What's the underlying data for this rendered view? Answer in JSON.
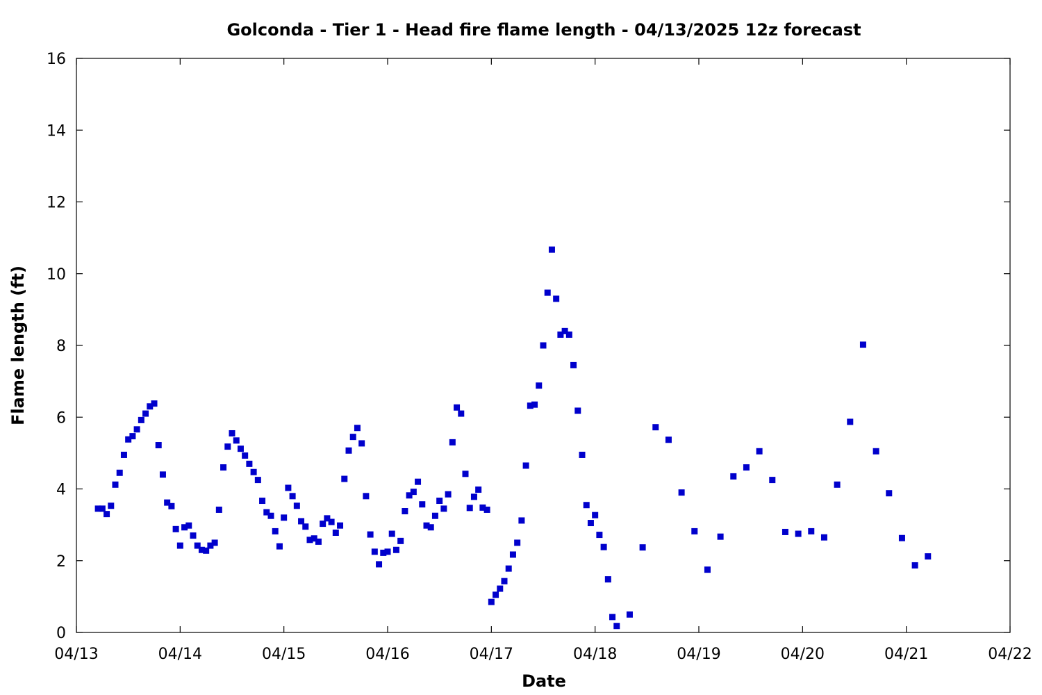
{
  "chart_data": {
    "type": "scatter",
    "title": "Golconda - Tier 1 - Head fire flame length - 04/13/2025 12z forecast",
    "xlabel": "Date",
    "ylabel": "Flame length (ft)",
    "xlim": [
      "04/13",
      "04/22"
    ],
    "ylim": [
      0,
      16
    ],
    "x_ticks": [
      "04/13",
      "04/14",
      "04/15",
      "04/16",
      "04/17",
      "04/18",
      "04/19",
      "04/20",
      "04/21",
      "04/22"
    ],
    "y_ticks": [
      0,
      2,
      4,
      6,
      8,
      10,
      12,
      14,
      16
    ],
    "grid": false,
    "marker": "square",
    "color": "#0000cc",
    "series": [
      {
        "x": [
          "2025-04-13 05:00",
          "2025-04-13 06:00",
          "2025-04-13 07:00",
          "2025-04-13 08:00",
          "2025-04-13 09:00",
          "2025-04-13 10:00",
          "2025-04-13 11:00",
          "2025-04-13 12:00",
          "2025-04-13 13:00",
          "2025-04-13 14:00",
          "2025-04-13 15:00",
          "2025-04-13 16:00",
          "2025-04-13 17:00",
          "2025-04-13 18:00",
          "2025-04-13 19:00",
          "2025-04-13 20:00",
          "2025-04-13 21:00",
          "2025-04-13 22:00",
          "2025-04-13 23:00",
          "2025-04-14 00:00",
          "2025-04-14 01:00",
          "2025-04-14 02:00",
          "2025-04-14 03:00",
          "2025-04-14 04:00",
          "2025-04-14 05:00",
          "2025-04-14 06:00",
          "2025-04-14 07:00",
          "2025-04-14 08:00",
          "2025-04-14 09:00",
          "2025-04-14 10:00",
          "2025-04-14 11:00",
          "2025-04-14 12:00",
          "2025-04-14 13:00",
          "2025-04-14 14:00",
          "2025-04-14 15:00",
          "2025-04-14 16:00",
          "2025-04-14 17:00",
          "2025-04-14 18:00",
          "2025-04-14 19:00",
          "2025-04-14 20:00",
          "2025-04-14 21:00",
          "2025-04-14 22:00",
          "2025-04-14 23:00",
          "2025-04-15 00:00",
          "2025-04-15 01:00",
          "2025-04-15 02:00",
          "2025-04-15 03:00",
          "2025-04-15 04:00",
          "2025-04-15 05:00",
          "2025-04-15 06:00",
          "2025-04-15 07:00",
          "2025-04-15 08:00",
          "2025-04-15 09:00",
          "2025-04-15 10:00",
          "2025-04-15 11:00",
          "2025-04-15 12:00",
          "2025-04-15 13:00",
          "2025-04-15 14:00",
          "2025-04-15 15:00",
          "2025-04-15 16:00",
          "2025-04-15 17:00",
          "2025-04-15 18:00",
          "2025-04-15 19:00",
          "2025-04-15 20:00",
          "2025-04-15 21:00",
          "2025-04-15 22:00",
          "2025-04-15 23:00",
          "2025-04-16 00:00",
          "2025-04-16 01:00",
          "2025-04-16 02:00",
          "2025-04-16 03:00",
          "2025-04-16 04:00",
          "2025-04-16 05:00",
          "2025-04-16 06:00",
          "2025-04-16 07:00",
          "2025-04-16 08:00",
          "2025-04-16 09:00",
          "2025-04-16 10:00",
          "2025-04-16 11:00",
          "2025-04-16 12:00",
          "2025-04-16 13:00",
          "2025-04-16 14:00",
          "2025-04-16 15:00",
          "2025-04-16 16:00",
          "2025-04-16 17:00",
          "2025-04-16 18:00",
          "2025-04-16 19:00",
          "2025-04-16 20:00",
          "2025-04-16 21:00",
          "2025-04-16 22:00",
          "2025-04-16 23:00",
          "2025-04-17 00:00",
          "2025-04-17 01:00",
          "2025-04-17 02:00",
          "2025-04-17 03:00",
          "2025-04-17 04:00",
          "2025-04-17 05:00",
          "2025-04-17 06:00",
          "2025-04-17 07:00",
          "2025-04-17 08:00",
          "2025-04-17 09:00",
          "2025-04-17 10:00",
          "2025-04-17 11:00",
          "2025-04-17 12:00",
          "2025-04-17 13:00",
          "2025-04-17 14:00",
          "2025-04-17 15:00",
          "2025-04-17 16:00",
          "2025-04-17 17:00",
          "2025-04-17 18:00",
          "2025-04-17 19:00",
          "2025-04-17 20:00",
          "2025-04-17 21:00",
          "2025-04-17 22:00",
          "2025-04-17 23:00",
          "2025-04-18 00:00",
          "2025-04-18 01:00",
          "2025-04-18 02:00",
          "2025-04-18 03:00",
          "2025-04-18 04:00",
          "2025-04-18 05:00",
          "2025-04-18 08:00",
          "2025-04-18 11:00",
          "2025-04-18 14:00",
          "2025-04-18 17:00",
          "2025-04-18 20:00",
          "2025-04-18 23:00",
          "2025-04-19 02:00",
          "2025-04-19 05:00",
          "2025-04-19 08:00",
          "2025-04-19 11:00",
          "2025-04-19 14:00",
          "2025-04-19 17:00",
          "2025-04-19 20:00",
          "2025-04-19 23:00",
          "2025-04-20 02:00",
          "2025-04-20 05:00",
          "2025-04-20 08:00",
          "2025-04-20 11:00",
          "2025-04-20 14:00",
          "2025-04-20 17:00",
          "2025-04-20 20:00",
          "2025-04-20 23:00",
          "2025-04-21 02:00",
          "2025-04-21 05:00"
        ],
        "y": [
          3.45,
          3.45,
          3.3,
          3.53,
          4.12,
          4.45,
          4.95,
          5.38,
          5.47,
          5.66,
          5.92,
          6.1,
          6.3,
          6.38,
          5.22,
          4.4,
          3.62,
          3.52,
          2.88,
          2.42,
          2.93,
          2.98,
          2.7,
          2.42,
          2.3,
          2.28,
          2.42,
          2.5,
          3.42,
          4.6,
          5.18,
          5.55,
          5.35,
          5.12,
          4.93,
          4.7,
          4.47,
          4.25,
          3.67,
          3.35,
          3.25,
          2.82,
          2.4,
          3.2,
          4.03,
          3.8,
          3.53,
          3.1,
          2.95,
          2.58,
          2.62,
          2.53,
          3.03,
          3.18,
          3.08,
          2.78,
          2.98,
          4.28,
          5.07,
          5.45,
          5.7,
          5.27,
          3.8,
          2.73,
          2.25,
          1.9,
          2.22,
          2.25,
          2.75,
          2.3,
          2.55,
          3.38,
          3.82,
          3.92,
          4.2,
          3.57,
          2.98,
          2.93,
          3.25,
          3.67,
          3.45,
          3.85,
          5.3,
          6.27,
          6.1,
          4.42,
          3.47,
          3.78,
          3.98,
          3.48,
          3.42,
          0.85,
          1.05,
          1.22,
          1.43,
          1.78,
          2.17,
          2.5,
          3.12,
          4.65,
          6.32,
          6.35,
          6.88,
          8.0,
          9.47,
          10.67,
          9.3,
          8.3,
          8.4,
          8.3,
          7.45,
          6.18,
          4.95,
          3.55,
          3.05,
          3.27,
          2.72,
          2.38,
          1.48,
          0.43,
          0.18,
          0.5,
          2.37,
          5.72,
          5.37,
          3.9,
          2.82,
          1.75,
          2.67,
          4.35,
          4.6,
          5.05,
          4.25,
          2.8,
          2.75,
          2.82,
          2.65,
          4.12,
          5.87,
          8.02,
          5.05,
          3.88,
          2.63,
          1.87,
          2.12
        ]
      }
    ]
  }
}
